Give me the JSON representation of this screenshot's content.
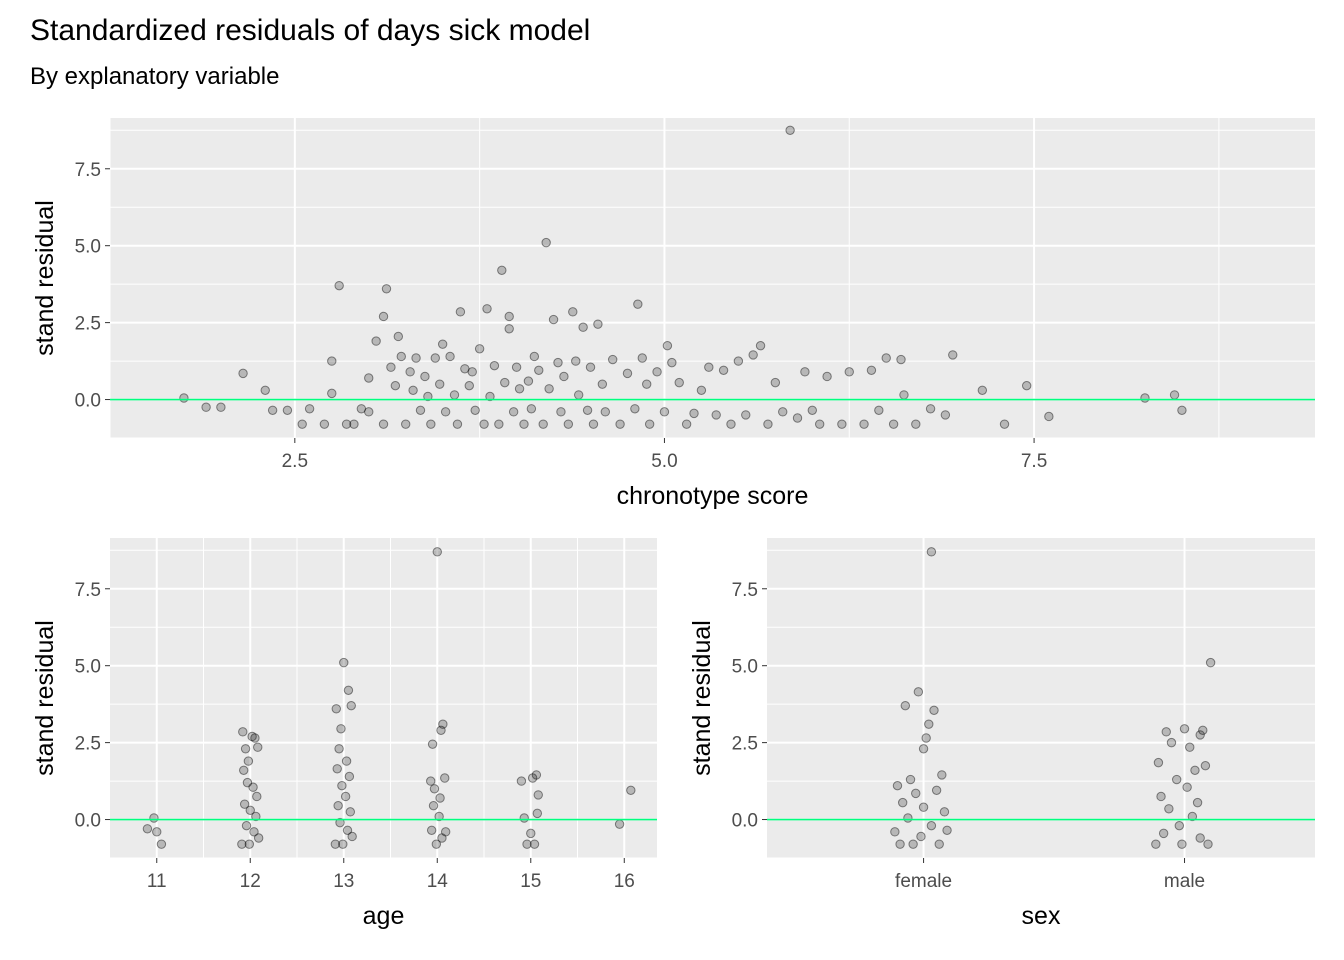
{
  "title": "Standardized residuals of days sick model",
  "subtitle": "By explanatory variable",
  "colors": {
    "panel_bg": "#EBEBEB",
    "grid": "#FFFFFF",
    "point": "#000000",
    "reference_line": "#00FF7F",
    "tick_text": "#4D4D4D",
    "label_text": "#000000"
  },
  "chart_data": [
    {
      "id": "chronotype",
      "type": "scatter",
      "xlabel": "chronotype score",
      "ylabel": "stand residual",
      "xlim": [
        1.25,
        9.4
      ],
      "ylim": [
        -1.25,
        9.15
      ],
      "xticks": [
        2.5,
        5.0,
        7.5
      ],
      "xtick_labels": [
        "2.5",
        "5.0",
        "7.5"
      ],
      "yticks": [
        0.0,
        2.5,
        5.0,
        7.5
      ],
      "ytick_labels": [
        "0.0",
        "2.5",
        "5.0",
        "7.5"
      ],
      "hline": 0,
      "points": [
        [
          1.75,
          0.05
        ],
        [
          1.9,
          -0.25
        ],
        [
          2.0,
          -0.25
        ],
        [
          2.15,
          0.85
        ],
        [
          2.3,
          0.3
        ],
        [
          2.35,
          -0.35
        ],
        [
          2.45,
          -0.35
        ],
        [
          2.55,
          -0.8
        ],
        [
          2.6,
          -0.3
        ],
        [
          2.7,
          -0.8
        ],
        [
          2.75,
          1.25
        ],
        [
          2.75,
          0.2
        ],
        [
          2.8,
          3.7
        ],
        [
          2.85,
          -0.8
        ],
        [
          2.9,
          -0.8
        ],
        [
          2.95,
          -0.3
        ],
        [
          3.0,
          0.7
        ],
        [
          3.0,
          -0.4
        ],
        [
          3.05,
          1.9
        ],
        [
          3.1,
          2.7
        ],
        [
          3.1,
          -0.8
        ],
        [
          3.12,
          3.6
        ],
        [
          3.15,
          1.05
        ],
        [
          3.18,
          0.45
        ],
        [
          3.2,
          2.05
        ],
        [
          3.22,
          1.4
        ],
        [
          3.25,
          -0.8
        ],
        [
          3.28,
          0.9
        ],
        [
          3.3,
          0.3
        ],
        [
          3.32,
          1.35
        ],
        [
          3.35,
          -0.35
        ],
        [
          3.38,
          0.75
        ],
        [
          3.4,
          0.1
        ],
        [
          3.42,
          -0.8
        ],
        [
          3.45,
          1.35
        ],
        [
          3.48,
          0.5
        ],
        [
          3.5,
          1.8
        ],
        [
          3.52,
          -0.4
        ],
        [
          3.55,
          1.4
        ],
        [
          3.58,
          0.15
        ],
        [
          3.6,
          -0.8
        ],
        [
          3.62,
          2.85
        ],
        [
          3.65,
          1.0
        ],
        [
          3.68,
          0.45
        ],
        [
          3.7,
          0.9
        ],
        [
          3.72,
          -0.35
        ],
        [
          3.75,
          1.65
        ],
        [
          3.78,
          -0.8
        ],
        [
          3.8,
          2.95
        ],
        [
          3.82,
          0.1
        ],
        [
          3.85,
          1.1
        ],
        [
          3.88,
          -0.8
        ],
        [
          3.9,
          4.2
        ],
        [
          3.92,
          0.55
        ],
        [
          3.95,
          2.7
        ],
        [
          3.95,
          2.3
        ],
        [
          3.98,
          -0.4
        ],
        [
          4.0,
          1.05
        ],
        [
          4.02,
          0.35
        ],
        [
          4.05,
          -0.8
        ],
        [
          4.08,
          0.6
        ],
        [
          4.1,
          -0.3
        ],
        [
          4.12,
          1.4
        ],
        [
          4.15,
          0.95
        ],
        [
          4.18,
          -0.8
        ],
        [
          4.2,
          5.1
        ],
        [
          4.22,
          0.35
        ],
        [
          4.25,
          2.6
        ],
        [
          4.28,
          1.2
        ],
        [
          4.3,
          -0.4
        ],
        [
          4.32,
          0.75
        ],
        [
          4.35,
          -0.8
        ],
        [
          4.38,
          2.85
        ],
        [
          4.4,
          1.25
        ],
        [
          4.42,
          0.15
        ],
        [
          4.45,
          2.35
        ],
        [
          4.48,
          -0.35
        ],
        [
          4.5,
          1.05
        ],
        [
          4.52,
          -0.8
        ],
        [
          4.55,
          2.45
        ],
        [
          4.58,
          0.5
        ],
        [
          4.6,
          -0.4
        ],
        [
          4.65,
          1.3
        ],
        [
          4.7,
          -0.8
        ],
        [
          4.75,
          0.85
        ],
        [
          4.8,
          -0.3
        ],
        [
          4.82,
          3.1
        ],
        [
          4.85,
          1.35
        ],
        [
          4.88,
          0.5
        ],
        [
          4.9,
          -0.8
        ],
        [
          4.95,
          0.9
        ],
        [
          5.0,
          -0.4
        ],
        [
          5.02,
          1.75
        ],
        [
          5.05,
          1.2
        ],
        [
          5.1,
          0.55
        ],
        [
          5.15,
          -0.8
        ],
        [
          5.2,
          -0.45
        ],
        [
          5.25,
          0.3
        ],
        [
          5.3,
          1.05
        ],
        [
          5.35,
          -0.5
        ],
        [
          5.4,
          0.95
        ],
        [
          5.45,
          -0.8
        ],
        [
          5.5,
          1.25
        ],
        [
          5.55,
          -0.5
        ],
        [
          5.6,
          1.45
        ],
        [
          5.65,
          1.75
        ],
        [
          5.7,
          -0.8
        ],
        [
          5.75,
          0.55
        ],
        [
          5.8,
          -0.4
        ],
        [
          5.85,
          8.75
        ],
        [
          5.9,
          -0.6
        ],
        [
          5.95,
          0.9
        ],
        [
          6.0,
          -0.35
        ],
        [
          6.05,
          -0.8
        ],
        [
          6.1,
          0.75
        ],
        [
          6.2,
          -0.8
        ],
        [
          6.25,
          0.9
        ],
        [
          6.35,
          -0.8
        ],
        [
          6.4,
          0.95
        ],
        [
          6.45,
          -0.35
        ],
        [
          6.5,
          1.35
        ],
        [
          6.55,
          -0.8
        ],
        [
          6.6,
          1.3
        ],
        [
          6.62,
          0.15
        ],
        [
          6.7,
          -0.8
        ],
        [
          6.8,
          -0.3
        ],
        [
          6.9,
          -0.5
        ],
        [
          6.95,
          1.45
        ],
        [
          7.15,
          0.3
        ],
        [
          7.3,
          -0.8
        ],
        [
          7.45,
          0.45
        ],
        [
          7.6,
          -0.55
        ],
        [
          8.25,
          0.05
        ],
        [
          8.45,
          0.15
        ],
        [
          8.5,
          -0.35
        ]
      ]
    },
    {
      "id": "age",
      "type": "scatter",
      "xlabel": "age",
      "ylabel": "stand residual",
      "xlim": [
        10.5,
        16.35
      ],
      "ylim": [
        -1.25,
        9.15
      ],
      "xticks": [
        11,
        12,
        13,
        14,
        15,
        16
      ],
      "xtick_labels": [
        "11",
        "12",
        "13",
        "14",
        "15",
        "16"
      ],
      "yticks": [
        0.0,
        2.5,
        5.0,
        7.5
      ],
      "ytick_labels": [
        "0.0",
        "2.5",
        "5.0",
        "7.5"
      ],
      "hline": 0,
      "points": [
        [
          10.9,
          -0.3
        ],
        [
          10.97,
          0.05
        ],
        [
          11.0,
          -0.4
        ],
        [
          11.05,
          -0.8
        ],
        [
          11.92,
          2.85
        ],
        [
          11.95,
          2.3
        ],
        [
          11.98,
          1.9
        ],
        [
          12.02,
          2.7
        ],
        [
          12.05,
          2.65
        ],
        [
          12.08,
          2.35
        ],
        [
          11.93,
          1.6
        ],
        [
          11.97,
          1.2
        ],
        [
          12.03,
          1.05
        ],
        [
          12.07,
          0.75
        ],
        [
          11.94,
          0.5
        ],
        [
          12.0,
          0.3
        ],
        [
          12.06,
          0.1
        ],
        [
          11.96,
          -0.2
        ],
        [
          12.04,
          -0.4
        ],
        [
          11.99,
          -0.8
        ],
        [
          12.09,
          -0.6
        ],
        [
          11.91,
          -0.8
        ],
        [
          12.92,
          3.6
        ],
        [
          12.97,
          2.95
        ],
        [
          13.0,
          5.1
        ],
        [
          13.05,
          4.2
        ],
        [
          13.08,
          3.7
        ],
        [
          12.95,
          2.3
        ],
        [
          13.03,
          1.9
        ],
        [
          12.93,
          1.65
        ],
        [
          13.06,
          1.4
        ],
        [
          12.98,
          1.1
        ],
        [
          13.02,
          0.75
        ],
        [
          12.94,
          0.45
        ],
        [
          13.07,
          0.25
        ],
        [
          12.96,
          -0.1
        ],
        [
          13.04,
          -0.35
        ],
        [
          12.99,
          -0.8
        ],
        [
          13.09,
          -0.55
        ],
        [
          12.91,
          -0.8
        ],
        [
          13.95,
          2.45
        ],
        [
          14.0,
          8.7
        ],
        [
          14.06,
          3.1
        ],
        [
          14.04,
          2.9
        ],
        [
          13.93,
          1.25
        ],
        [
          14.08,
          1.35
        ],
        [
          13.97,
          1.0
        ],
        [
          14.03,
          0.7
        ],
        [
          13.96,
          0.45
        ],
        [
          14.02,
          0.1
        ],
        [
          13.94,
          -0.35
        ],
        [
          14.05,
          -0.6
        ],
        [
          13.99,
          -0.8
        ],
        [
          14.09,
          -0.4
        ],
        [
          14.9,
          1.25
        ],
        [
          15.02,
          1.35
        ],
        [
          15.06,
          1.45
        ],
        [
          15.08,
          0.8
        ],
        [
          14.93,
          0.05
        ],
        [
          15.0,
          -0.45
        ],
        [
          15.04,
          -0.8
        ],
        [
          14.96,
          -0.8
        ],
        [
          15.07,
          0.2
        ],
        [
          15.95,
          -0.15
        ],
        [
          16.07,
          0.95
        ]
      ]
    },
    {
      "id": "sex",
      "type": "scatter",
      "xlabel": "sex",
      "ylabel": "stand residual",
      "categories": [
        "female",
        "male"
      ],
      "xlim": [
        0.4,
        2.5
      ],
      "ylim": [
        -1.25,
        9.15
      ],
      "xticks": [
        1,
        2
      ],
      "xtick_labels": [
        "female",
        "male"
      ],
      "yticks": [
        0.0,
        2.5,
        5.0,
        7.5
      ],
      "ytick_labels": [
        "0.0",
        "2.5",
        "5.0",
        "7.5"
      ],
      "hline": 0,
      "points": [
        [
          1.03,
          8.7
        ],
        [
          0.93,
          3.7
        ],
        [
          0.98,
          4.15
        ],
        [
          1.02,
          3.1
        ],
        [
          1.04,
          3.55
        ],
        [
          1.01,
          2.65
        ],
        [
          1.0,
          2.3
        ],
        [
          0.95,
          1.3
        ],
        [
          1.07,
          1.45
        ],
        [
          0.9,
          1.1
        ],
        [
          0.97,
          0.85
        ],
        [
          1.05,
          0.95
        ],
        [
          0.92,
          0.55
        ],
        [
          1.0,
          0.4
        ],
        [
          1.08,
          0.25
        ],
        [
          0.94,
          0.05
        ],
        [
          1.03,
          -0.2
        ],
        [
          0.89,
          -0.4
        ],
        [
          0.99,
          -0.55
        ],
        [
          1.06,
          -0.8
        ],
        [
          0.91,
          -0.8
        ],
        [
          1.09,
          -0.35
        ],
        [
          0.96,
          -0.8
        ],
        [
          2.1,
          5.1
        ],
        [
          1.93,
          2.85
        ],
        [
          2.0,
          2.95
        ],
        [
          2.06,
          2.75
        ],
        [
          2.07,
          2.9
        ],
        [
          1.95,
          2.5
        ],
        [
          2.02,
          2.35
        ],
        [
          1.9,
          1.85
        ],
        [
          2.04,
          1.6
        ],
        [
          2.08,
          1.75
        ],
        [
          1.97,
          1.3
        ],
        [
          2.01,
          1.05
        ],
        [
          1.91,
          0.75
        ],
        [
          2.05,
          0.55
        ],
        [
          1.94,
          0.35
        ],
        [
          2.03,
          0.1
        ],
        [
          1.98,
          -0.2
        ],
        [
          1.92,
          -0.45
        ],
        [
          2.06,
          -0.6
        ],
        [
          1.99,
          -0.8
        ],
        [
          2.09,
          -0.8
        ],
        [
          1.89,
          -0.8
        ]
      ]
    }
  ]
}
